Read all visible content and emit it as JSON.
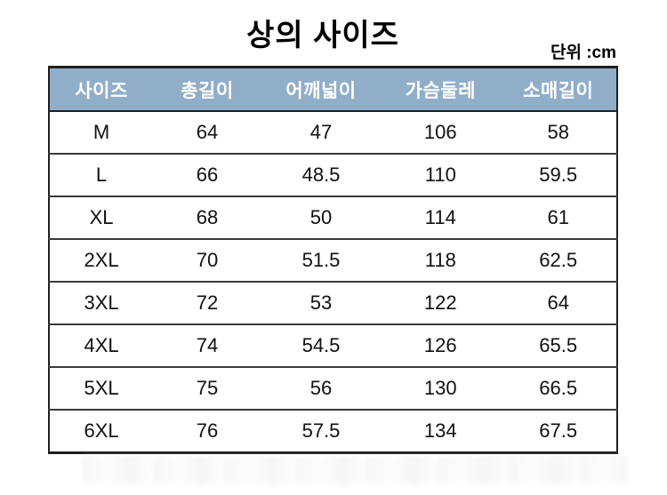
{
  "colors": {
    "header_bg": "#91aec9",
    "header_text": "#ffffff",
    "border_dark": "#1f1f1f",
    "row_line": "#3a3a3a",
    "body_text": "#101010"
  },
  "chart_data": {
    "type": "table",
    "title": "상의 사이즈",
    "unit": "단위 :cm",
    "columns": [
      "사이즈",
      "총길이",
      "어깨넓이",
      "가슴둘레",
      "소매길이"
    ],
    "rows": [
      [
        "M",
        "64",
        "47",
        "106",
        "58"
      ],
      [
        "L",
        "66",
        "48.5",
        "110",
        "59.5"
      ],
      [
        "XL",
        "68",
        "50",
        "114",
        "61"
      ],
      [
        "2XL",
        "70",
        "51.5",
        "118",
        "62.5"
      ],
      [
        "3XL",
        "72",
        "53",
        "122",
        "64"
      ],
      [
        "4XL",
        "74",
        "54.5",
        "126",
        "65.5"
      ],
      [
        "5XL",
        "75",
        "56",
        "130",
        "66.5"
      ],
      [
        "6XL",
        "76",
        "57.5",
        "134",
        "67.5"
      ]
    ]
  }
}
